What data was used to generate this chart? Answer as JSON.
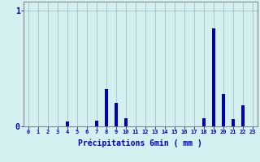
{
  "xlabel": "Précipitations 6min ( mm )",
  "ylabel": "",
  "background_color": "#d5f0f0",
  "bar_color": "#0000bb",
  "grid_color": "#aacccc",
  "axis_color": "#888888",
  "text_color": "#0000bb",
  "ylim": [
    0,
    1.08
  ],
  "xlim": [
    -0.5,
    23.5
  ],
  "hours": [
    0,
    1,
    2,
    3,
    4,
    5,
    6,
    7,
    8,
    9,
    10,
    11,
    12,
    13,
    14,
    15,
    16,
    17,
    18,
    19,
    20,
    21,
    22,
    23
  ],
  "values": [
    0,
    0,
    0,
    0,
    0.045,
    0,
    0,
    0.05,
    0.32,
    0.2,
    0.07,
    0,
    0,
    0,
    0,
    0,
    0,
    0,
    0.07,
    0.85,
    0.28,
    0.065,
    0.185,
    0
  ],
  "yticks": [
    0,
    1
  ],
  "ytick_labels": [
    "0",
    "1"
  ],
  "xtick_labels": [
    "0",
    "1",
    "2",
    "3",
    "4",
    "5",
    "6",
    "7",
    "8",
    "9",
    "10",
    "11",
    "12",
    "13",
    "14",
    "15",
    "16",
    "17",
    "18",
    "19",
    "20",
    "21",
    "22",
    "23"
  ]
}
